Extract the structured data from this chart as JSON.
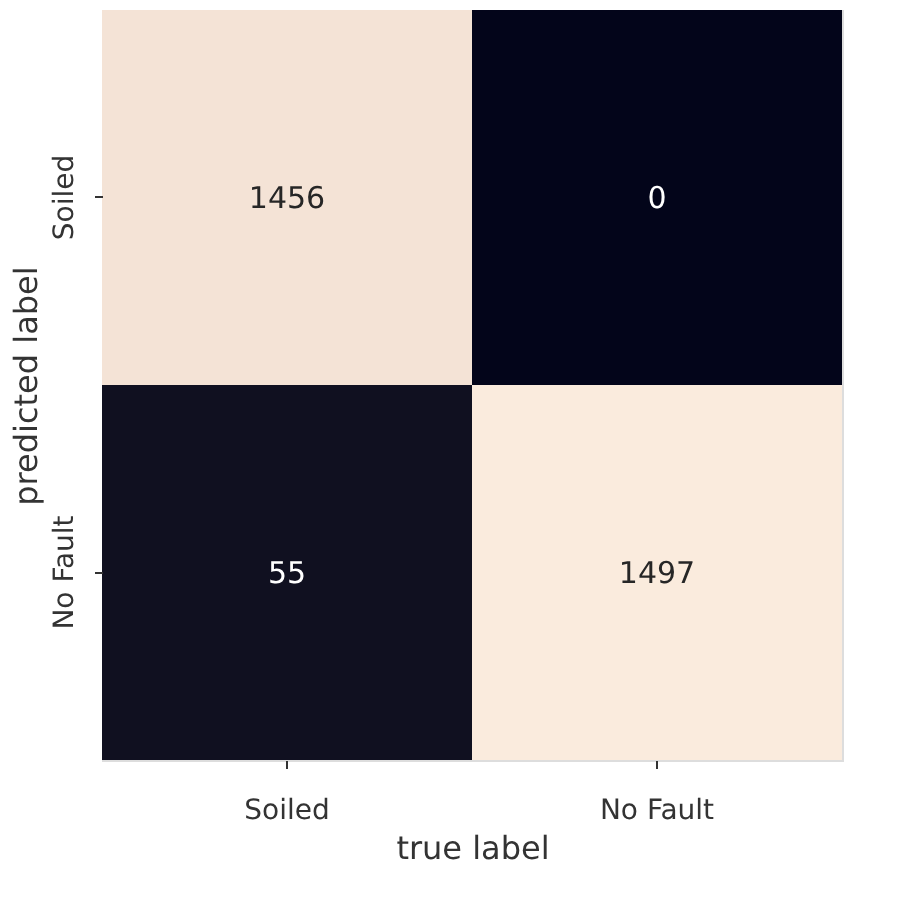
{
  "chart_data": {
    "type": "heatmap",
    "xlabel": "true label",
    "ylabel": "predicted label",
    "categories": [
      "Soiled",
      "No Fault"
    ],
    "y_categories": [
      "Soiled",
      "No Fault"
    ],
    "cells": [
      [
        1456,
        0
      ],
      [
        55,
        1497
      ]
    ],
    "data_labels": true
  }
}
